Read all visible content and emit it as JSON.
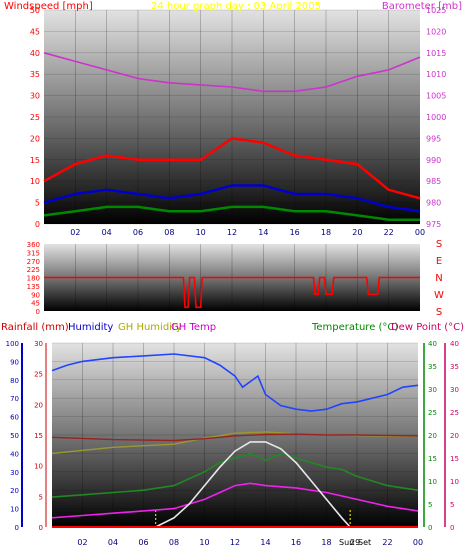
{
  "panel1": {
    "left_label": "Windspeed [mph]",
    "center_label": "24 hour graph day : 03 April 2005",
    "right_label": "Barometer [mb]",
    "colors": {
      "left_label": "#ff0000",
      "center_label": "#ffff00",
      "right_label": "#cc33cc",
      "barometer": "#cc33cc",
      "gust": "#ff0000",
      "avg": "#0000cc",
      "min": "#008800"
    }
  },
  "panel2": {
    "compass_letters": [
      "S",
      "E",
      "N",
      "W",
      "S"
    ],
    "color": "#ff0000"
  },
  "panel3": {
    "labels": {
      "rainfall": "Rainfall (mm)",
      "humidity": "Humidity",
      "gh_humidity": "GH Humidity",
      "gh_temp": "GH Temp",
      "temperature": "Temperature (°C)",
      "dew_point": "Dew Point (°C)"
    },
    "colors": {
      "rainfall": "#cc0000",
      "humidity": "#0000cc",
      "gh_humidity": "#aaaa00",
      "gh_temp": "#cc00cc",
      "temperature": "#008800",
      "dew_point": "#cc0066",
      "humidity_series": "#2244ff",
      "gh_humidity_series": "#999933",
      "gh_temp_series": "#992222",
      "temperature_series": "#228822",
      "dew_series": "#ee22ee",
      "sun_series": "#e8e8e8",
      "sun_markers": "#ffff00"
    },
    "sun_markers": {
      "rise_hour": 6.8,
      "set_hour": 19.55
    },
    "sun_label": "Sun",
    "set_label": "Set",
    "marker_29": "29"
  },
  "chart_data": [
    {
      "type": "line",
      "title": "24 hour graph day : 03 April 2005",
      "x_axis": {
        "unit": "hour",
        "ticks": [
          "02",
          "04",
          "06",
          "08",
          "10",
          "12",
          "14",
          "16",
          "18",
          "20",
          "22",
          "00"
        ]
      },
      "y_left": {
        "label": "Windspeed [mph]",
        "range": [
          0,
          50
        ],
        "ticks": [
          0,
          5,
          10,
          15,
          20,
          25,
          30,
          35,
          40,
          45,
          50
        ]
      },
      "y_right": {
        "label": "Barometer [mb]",
        "range": [
          975,
          1025
        ],
        "ticks": [
          975,
          980,
          985,
          990,
          995,
          1000,
          1005,
          1010,
          1015,
          1020,
          1025
        ]
      },
      "series": [
        {
          "name": "Barometer",
          "axis": "right",
          "x": [
            0,
            2,
            4,
            6,
            8,
            10,
            12,
            14,
            16,
            18,
            20,
            22,
            24
          ],
          "y": [
            1015,
            1013,
            1011,
            1009,
            1008,
            1007.5,
            1007,
            1006,
            1006,
            1007,
            1009.5,
            1011,
            1014
          ]
        },
        {
          "axis": "left",
          "x": [
            0,
            2,
            4,
            6,
            8,
            10,
            12,
            14,
            16,
            18,
            20,
            22,
            24
          ],
          "y": [
            10,
            14,
            16,
            15,
            15,
            15,
            20,
            19,
            16,
            15,
            14,
            8,
            6
          ]
        },
        {
          "axis": "left",
          "x": [
            0,
            2,
            4,
            6,
            8,
            10,
            12,
            14,
            16,
            18,
            20,
            22,
            24
          ],
          "y": [
            5,
            7,
            8,
            7,
            6,
            7,
            9,
            9,
            7,
            7,
            6,
            4,
            3
          ]
        },
        {
          "axis": "left",
          "x": [
            0,
            2,
            4,
            6,
            8,
            10,
            12,
            14,
            16,
            18,
            20,
            22,
            24
          ],
          "y": [
            2,
            3,
            4,
            4,
            3,
            3,
            4,
            4,
            3,
            3,
            2,
            1,
            1
          ]
        }
      ]
    },
    {
      "type": "line",
      "x_axis": {
        "unit": "hour",
        "range": [
          0,
          24
        ]
      },
      "y_left": {
        "range": [
          0,
          360
        ],
        "ticks": [
          0,
          45,
          90,
          135,
          180,
          225,
          270,
          315,
          360
        ]
      },
      "y_right": {
        "labels": [
          "S",
          "E",
          "N",
          "W",
          "S"
        ]
      },
      "series": [
        {
          "axis": "left",
          "x": [
            0,
            8.9,
            9.0,
            9.2,
            9.3,
            9.6,
            9.7,
            10.0,
            10.1,
            10.3,
            10.4,
            17.2,
            17.3,
            17.5,
            17.6,
            17.9,
            18.0,
            18.4,
            18.5,
            18.8,
            18.9,
            20.6,
            20.7,
            21.3,
            21.4,
            24
          ],
          "y": [
            180,
            180,
            20,
            20,
            180,
            180,
            20,
            20,
            180,
            180,
            180,
            180,
            90,
            90,
            180,
            180,
            90,
            90,
            180,
            180,
            180,
            180,
            90,
            90,
            180,
            180
          ]
        }
      ]
    },
    {
      "type": "line",
      "x_axis": {
        "unit": "hour",
        "ticks": [
          "02",
          "04",
          "06",
          "08",
          "10",
          "12",
          "14",
          "16",
          "18",
          "20",
          "22",
          "00"
        ]
      },
      "y_axes": {
        "humidity": {
          "label": "Humidity",
          "range": [
            0,
            100
          ],
          "ticks": [
            0,
            10,
            20,
            30,
            40,
            50,
            60,
            70,
            80,
            90,
            100
          ]
        },
        "rainfall": {
          "label": "Rainfall (mm)",
          "range": [
            0,
            30
          ],
          "ticks": [
            0,
            5,
            10,
            15,
            20,
            25,
            30
          ]
        },
        "temperature": {
          "label": "Temperature (°C)",
          "range": [
            0,
            40
          ],
          "ticks": [
            0,
            5,
            10,
            15,
            20,
            25,
            30,
            35,
            40
          ]
        },
        "dew_point": {
          "label": "Dew Point (°C)",
          "range": [
            0,
            40
          ],
          "ticks": [
            0,
            5,
            10,
            15,
            20,
            25,
            30,
            35,
            40
          ]
        }
      },
      "series": [
        {
          "name": "Humidity",
          "axis": "humidity",
          "x": [
            0,
            1,
            2,
            4,
            6,
            8,
            10,
            11,
            12,
            12.5,
            13,
            13.5,
            14,
            15,
            16,
            17,
            18,
            19,
            20,
            21,
            22,
            23,
            24
          ],
          "y": [
            85,
            88,
            90,
            92,
            93,
            94,
            92,
            88,
            82,
            76,
            79,
            82,
            72,
            66,
            64,
            63,
            64,
            67,
            68,
            70,
            72,
            76,
            77
          ]
        },
        {
          "name": "GH Humidity",
          "axis": "rainfall",
          "x": [
            0,
            4,
            8,
            10,
            12,
            14,
            16,
            18,
            20,
            22,
            24
          ],
          "y": [
            12,
            13,
            13.5,
            14.5,
            15.3,
            15.5,
            15.2,
            15.0,
            14.9,
            14.8,
            14.8
          ]
        },
        {
          "name": "GH Temp",
          "axis": "temperature",
          "x": [
            0,
            4,
            8,
            10,
            12,
            14,
            16,
            18,
            20,
            22,
            24
          ],
          "y": [
            19.5,
            19,
            18.8,
            19.2,
            19.8,
            20.1,
            20.2,
            20.0,
            20.0,
            19.9,
            19.8
          ]
        },
        {
          "name": "Temperature",
          "axis": "temperature",
          "x": [
            0,
            2,
            4,
            6,
            8,
            10,
            11,
            12,
            13,
            14,
            15,
            16,
            17,
            18,
            19,
            20,
            21,
            22,
            23,
            24
          ],
          "y": [
            6.5,
            7,
            7.5,
            8,
            9,
            12,
            14,
            15,
            16,
            14.5,
            16,
            15,
            14,
            13,
            12.5,
            11,
            10,
            9,
            8.5,
            8
          ]
        },
        {
          "name": "Dew Point",
          "axis": "dew_point",
          "x": [
            0,
            2,
            4,
            6,
            8,
            10,
            11,
            12,
            13,
            14,
            16,
            18,
            20,
            22,
            24
          ],
          "y": [
            2,
            2.5,
            3,
            3.5,
            4,
            6,
            7.5,
            9,
            9.5,
            9,
            8.5,
            7.5,
            6,
            4.5,
            3.5
          ]
        },
        {
          "axis": "temperature",
          "x": [
            6.8,
            8,
            9,
            10,
            11,
            12,
            13,
            14,
            15,
            16,
            17,
            18,
            19,
            19.55
          ],
          "y": [
            0,
            2,
            5,
            9,
            13,
            16.5,
            18.5,
            18.5,
            17,
            14,
            10,
            6,
            2,
            0
          ]
        },
        {
          "name": "Rainfall",
          "axis": "rainfall",
          "x": [
            0,
            24
          ],
          "y": [
            0,
            0
          ]
        }
      ]
    }
  ]
}
